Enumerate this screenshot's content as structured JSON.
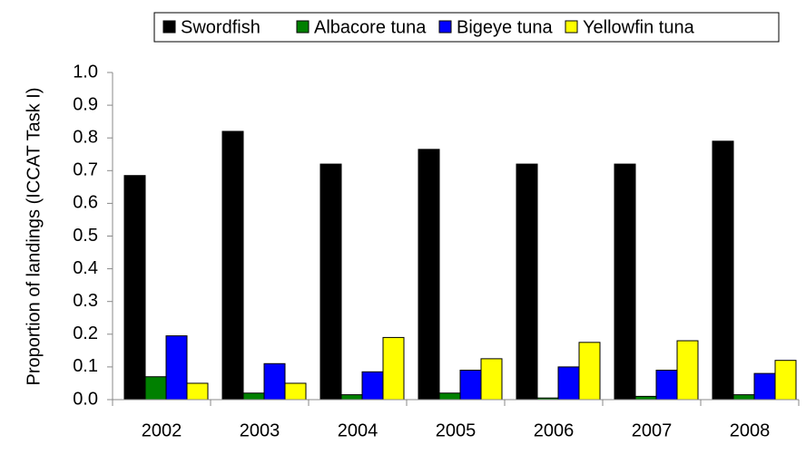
{
  "chart_data": {
    "type": "bar",
    "y_label": "Proportion of landings (ICCAT Task I)",
    "categories": [
      "2002",
      "2003",
      "2004",
      "2005",
      "2006",
      "2007",
      "2008"
    ],
    "series": [
      {
        "name": "Swordfish",
        "color": "#000000",
        "values": [
          0.685,
          0.82,
          0.72,
          0.765,
          0.72,
          0.72,
          0.79
        ]
      },
      {
        "name": "Albacore tuna",
        "color": "#008000",
        "values": [
          0.07,
          0.02,
          0.015,
          0.02,
          0.005,
          0.01,
          0.015
        ]
      },
      {
        "name": "Bigeye tuna",
        "color": "#0000ff",
        "values": [
          0.195,
          0.11,
          0.085,
          0.09,
          0.1,
          0.09,
          0.08
        ]
      },
      {
        "name": "Yellowfin tuna",
        "color": "#ffff00",
        "values": [
          0.05,
          0.05,
          0.19,
          0.125,
          0.175,
          0.18,
          0.12
        ]
      }
    ],
    "ylim": [
      0,
      1
    ],
    "yticks": [
      {
        "value": 0,
        "label": "0.0"
      },
      0.1,
      0.2,
      0.3,
      0.4,
      0.5,
      0.6,
      0.7,
      0.8,
      0.9,
      {
        "value": 1,
        "label": "1.0"
      }
    ],
    "legend": "top"
  }
}
